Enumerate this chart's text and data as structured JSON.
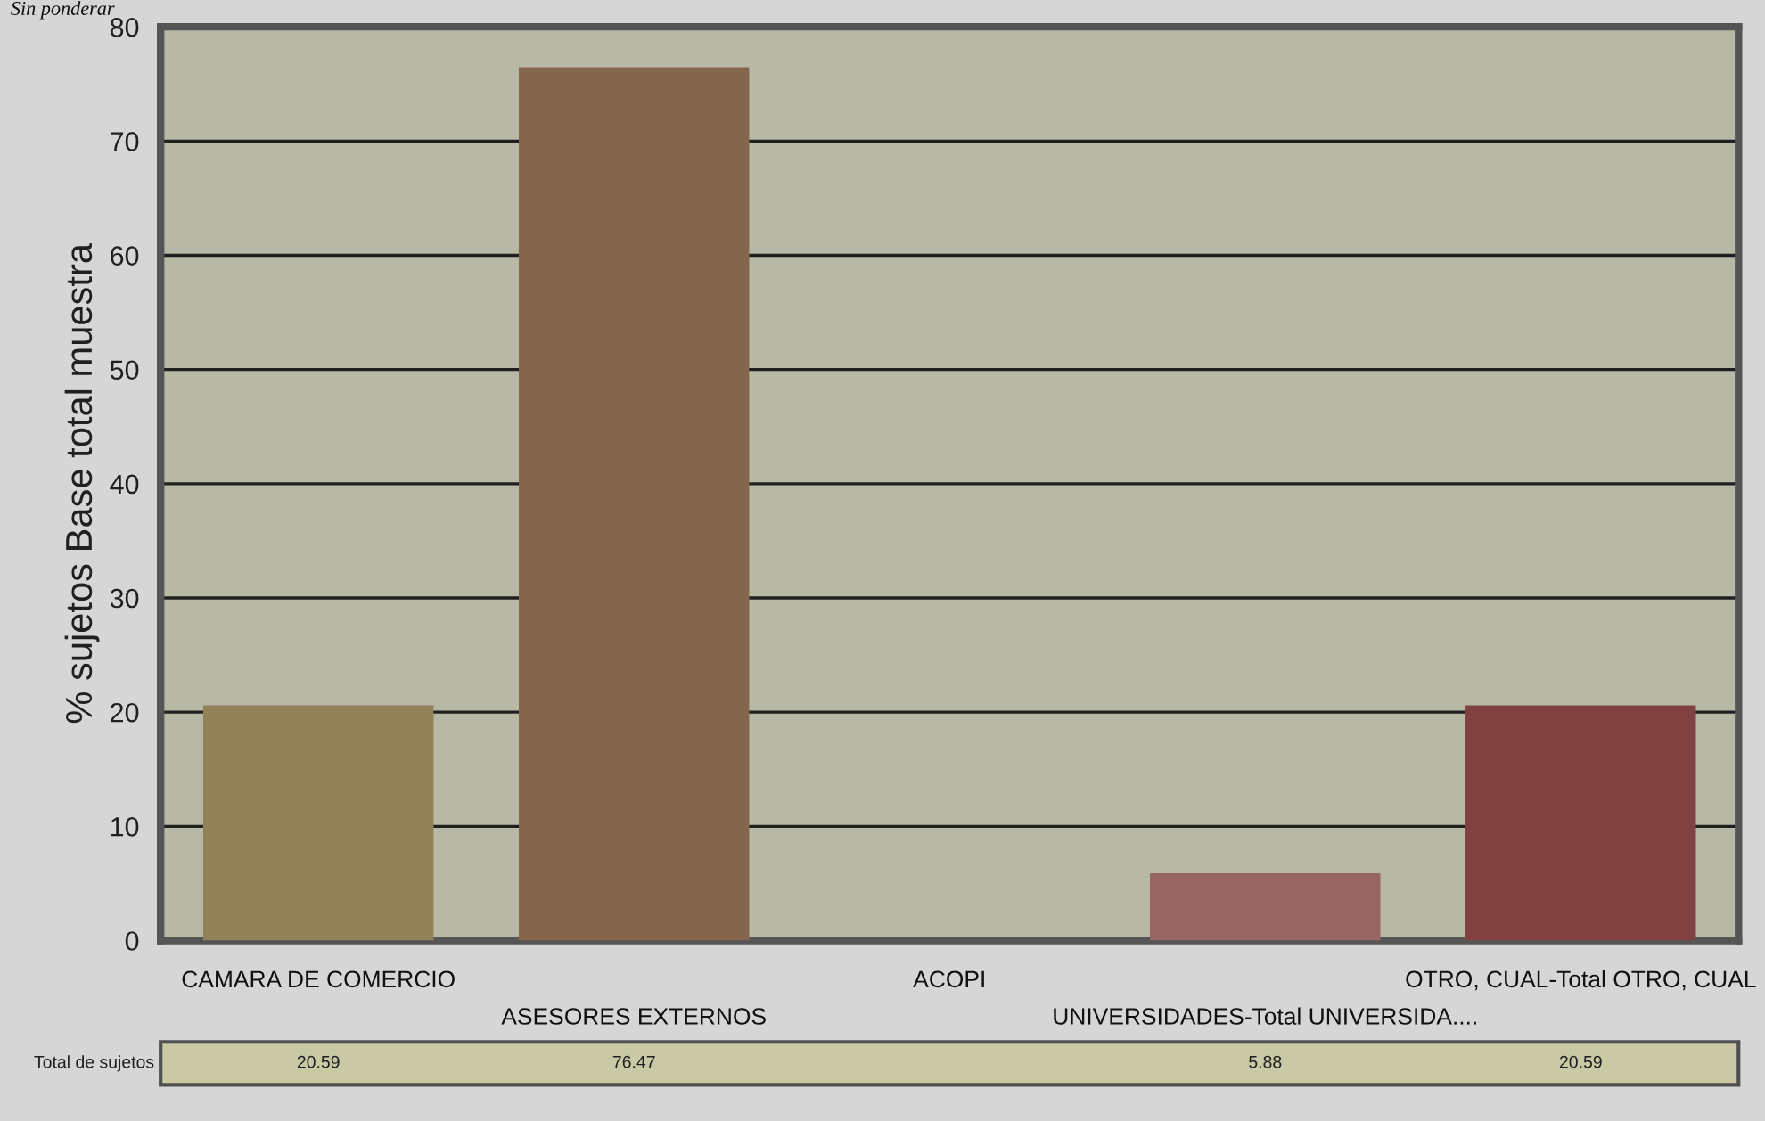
{
  "chart_data": {
    "type": "bar",
    "ylabel": "% sujetos Base total muestra",
    "categories": [
      "CAMARA DE COMERCIO",
      "ASESORES EXTERNOS",
      "ACOPI",
      "UNIVERSIDADES-Total UNIVERSIDA....",
      "OTRO, CUAL-Total OTRO, CUAL"
    ],
    "values": [
      20.59,
      76.47,
      0,
      5.88,
      20.59
    ],
    "value_labels": [
      "20.59",
      "76.47",
      null,
      "5.88",
      "20.59"
    ],
    "colors": [
      "#9a8650",
      "#8e6444",
      "#8e6a58",
      "#a05c5c",
      "#8c3636"
    ],
    "ylim": [
      0,
      80
    ],
    "yticks": [
      0,
      10,
      20,
      30,
      40,
      50,
      60,
      70,
      80
    ],
    "grid": "y",
    "annotations": [
      "Sin ponderar",
      "Total de sujetos"
    ]
  }
}
